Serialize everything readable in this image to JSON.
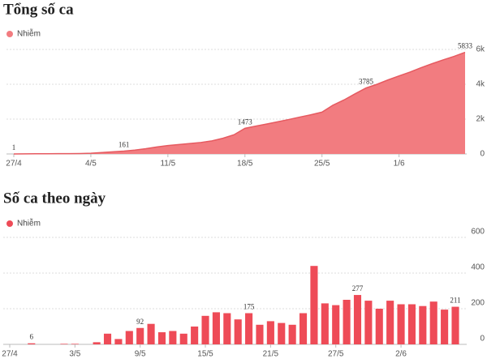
{
  "chart_data": [
    {
      "type": "area",
      "title": "Tổng số ca",
      "categories": [
        "27/4",
        null,
        null,
        null,
        null,
        null,
        null,
        "4/5",
        null,
        null,
        null,
        null,
        null,
        null,
        "11/5",
        null,
        null,
        null,
        null,
        null,
        null,
        "18/5",
        null,
        null,
        null,
        null,
        null,
        null,
        "25/5",
        null,
        null,
        null,
        null,
        null,
        null,
        "1/6",
        null,
        null,
        null,
        null,
        null,
        null
      ],
      "series": [
        {
          "name": "Nhiễm",
          "color": "#f27c80",
          "values": [
            1,
            5,
            10,
            12,
            15,
            20,
            25,
            40,
            80,
            120,
            161,
            220,
            300,
            400,
            480,
            540,
            600,
            660,
            750,
            900,
            1100,
            1473,
            1600,
            1720,
            1850,
            1980,
            2120,
            2250,
            2400,
            2800,
            3100,
            3450,
            3785,
            4000,
            4250,
            4480,
            4700,
            4950,
            5180,
            5400,
            5600,
            5833
          ],
          "value_labels": [
            "1",
            null,
            null,
            null,
            null,
            null,
            null,
            null,
            null,
            null,
            "161",
            null,
            null,
            null,
            null,
            null,
            null,
            null,
            null,
            null,
            null,
            "1473",
            null,
            null,
            null,
            null,
            null,
            null,
            null,
            null,
            null,
            null,
            "3785",
            null,
            null,
            null,
            null,
            null,
            null,
            null,
            null,
            "5833"
          ]
        }
      ],
      "ylim": [
        0,
        6000
      ],
      "yticks": [
        0,
        {
          "value": 2000,
          "label": "2k"
        },
        {
          "value": 4000,
          "label": "4k"
        },
        {
          "value": 6000,
          "label": "6k"
        }
      ],
      "grid": true
    },
    {
      "type": "bar",
      "title": "Số ca theo ngày",
      "categories": [
        "27/4",
        null,
        null,
        null,
        null,
        null,
        "3/5",
        null,
        null,
        null,
        null,
        null,
        "9/5",
        null,
        null,
        null,
        null,
        null,
        "15/5",
        null,
        null,
        null,
        null,
        null,
        "21/5",
        null,
        null,
        null,
        null,
        null,
        "27/5",
        null,
        null,
        null,
        null,
        null,
        "2/6",
        null,
        null,
        null,
        null,
        null
      ],
      "series": [
        {
          "name": "Nhiễm",
          "color": "#ee4b57",
          "values": [
            0,
            0,
            6,
            0,
            0,
            3,
            3,
            0,
            12,
            60,
            30,
            75,
            92,
            115,
            68,
            75,
            60,
            100,
            160,
            180,
            175,
            140,
            175,
            110,
            130,
            120,
            110,
            175,
            440,
            230,
            220,
            250,
            277,
            245,
            200,
            245,
            225,
            225,
            215,
            240,
            195,
            211
          ],
          "value_labels": [
            null,
            null,
            "6",
            null,
            null,
            null,
            null,
            null,
            null,
            null,
            null,
            null,
            "92",
            null,
            null,
            null,
            null,
            null,
            null,
            null,
            null,
            null,
            "175",
            null,
            null,
            null,
            null,
            null,
            null,
            null,
            null,
            null,
            "277",
            null,
            null,
            null,
            null,
            null,
            null,
            null,
            null,
            "211"
          ]
        }
      ],
      "ylim": [
        0,
        600
      ],
      "yticks": [
        0,
        200,
        400,
        600
      ],
      "grid": true
    }
  ]
}
